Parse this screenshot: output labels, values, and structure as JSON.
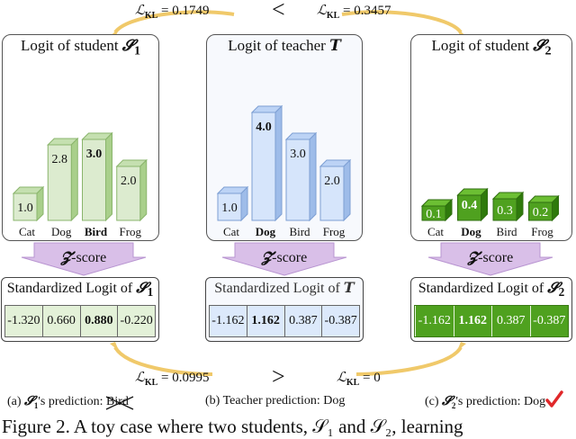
{
  "kl_top": {
    "left": "= 0.1749",
    "comparator": "<",
    "right": "= 0.3457"
  },
  "kl_bottom": {
    "left": "= 0.0995",
    "comparator": ">",
    "right": "= 0"
  },
  "kl_symbol": "ℒ",
  "kl_sub": "KL",
  "panels": [
    {
      "title": "Logit of student",
      "symbol": "𝓢",
      "sub": "1",
      "bars": [
        {
          "label": "Cat",
          "value": "1.0",
          "v": 1.0,
          "bold": false
        },
        {
          "label": "Dog",
          "value": "2.8",
          "v": 2.8,
          "bold": false
        },
        {
          "label": "Bird",
          "value": "3.0",
          "v": 3.0,
          "bold": true
        },
        {
          "label": "Frog",
          "value": "2.0",
          "v": 2.0,
          "bold": false
        }
      ],
      "scale_max": 4.0,
      "colors": {
        "front": "#dcebcf",
        "side": "#a9cf8b",
        "top": "#c5e0b0",
        "stroke": "#8ab56c"
      }
    },
    {
      "title": "Logit of teacher",
      "symbol": "T",
      "sub": "",
      "bars": [
        {
          "label": "Cat",
          "value": "1.0",
          "v": 1.0,
          "bold": false
        },
        {
          "label": "Dog",
          "value": "4.0",
          "v": 4.0,
          "bold": true
        },
        {
          "label": "Bird",
          "value": "3.0",
          "v": 3.0,
          "bold": false
        },
        {
          "label": "Frog",
          "value": "2.0",
          "v": 2.0,
          "bold": false
        }
      ],
      "scale_max": 4.0,
      "colors": {
        "front": "#d6e5fb",
        "side": "#9ebce9",
        "top": "#bcd3f5",
        "stroke": "#7d9fd3"
      }
    },
    {
      "title": "Logit of student",
      "symbol": "𝓢",
      "sub": "2",
      "bars": [
        {
          "label": "Cat",
          "value": "0.1",
          "v": 0.1,
          "bold": false
        },
        {
          "label": "Dog",
          "value": "0.4",
          "v": 0.4,
          "bold": true
        },
        {
          "label": "Bird",
          "value": "0.3",
          "v": 0.3,
          "bold": false
        },
        {
          "label": "Frog",
          "value": "0.2",
          "v": 0.2,
          "bold": false
        }
      ],
      "scale_max": 4.0,
      "colors": {
        "front": "#4fa11f",
        "side": "#2f7a0c",
        "top": "#6cbf33",
        "stroke": "#2f6e10"
      }
    }
  ],
  "zscore_label": "-score",
  "zscore_symbol": "𝓩",
  "standardized": [
    {
      "title": "Standardized Logit of",
      "symbol": "𝓢",
      "sub": "1",
      "values": [
        "-1.320",
        "0.660",
        "0.880",
        "-0.220"
      ],
      "bold_index": 2
    },
    {
      "title": "Standardized Logit of",
      "symbol": "T",
      "sub": "",
      "values": [
        "-1.162",
        "1.162",
        "0.387",
        "-0.387"
      ],
      "bold_index": 1
    },
    {
      "title": "Standardized Logit of",
      "symbol": "𝓢",
      "sub": "2",
      "values": [
        "-1.162",
        "1.162",
        "0.387",
        "-0.387"
      ],
      "bold_index": 1
    }
  ],
  "captions": {
    "a_prefix": "(a)",
    "a_symbol": "𝓢",
    "a_sub": "1",
    "a_text": "'s prediction:",
    "a_pred": "Bird",
    "b": "(b) Teacher prediction: Dog",
    "c_prefix": "(c)",
    "c_symbol": "𝓢",
    "c_sub": "2",
    "c_text": "'s prediction: Dog"
  },
  "figure_line": "Figure 2.  A toy case where two students, 𝒮₁ and 𝒮₂, learning"
}
